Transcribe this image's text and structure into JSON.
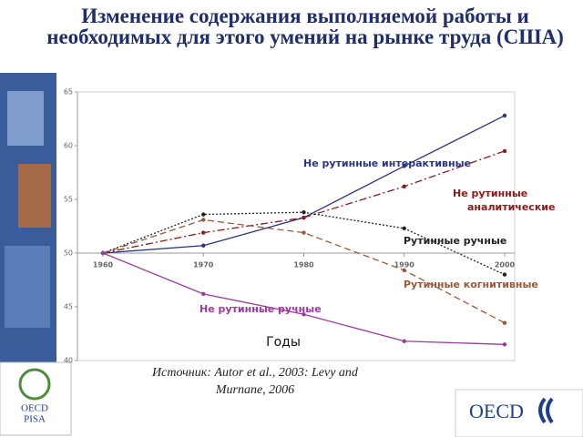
{
  "chart_data": {
    "type": "line",
    "title": "Изменение содержания выполняемой работы и необходимых для этого умений на рынке труда (США)",
    "x_label": "Годы",
    "source": "Источник: Autor et al., 2003: Levy and Murnane, 2006",
    "x": [
      1960,
      1970,
      1980,
      1990,
      2000
    ],
    "xlim": [
      1960,
      2001
    ],
    "xticks": [
      1960,
      1970,
      1980,
      1990,
      2000
    ],
    "ylim": [
      40,
      65
    ],
    "yticks": [
      40,
      45,
      50,
      55,
      60,
      65
    ],
    "series": [
      {
        "name": "Не рутинные интерактивные",
        "color": "#2a3585",
        "values": [
          50,
          50.7,
          53.3,
          58.1,
          62.8
        ]
      },
      {
        "name": "Не рутинные аналитические",
        "color": "#8b1a1a",
        "values": [
          50,
          51.9,
          53.3,
          56.2,
          59.5
        ]
      },
      {
        "name": "Рутинные ручные",
        "color": "#222222",
        "values": [
          50,
          53.6,
          53.8,
          52.3,
          48
        ]
      },
      {
        "name": "Рутинные когнитивные",
        "color": "#9a5a3a",
        "values": [
          50,
          53.1,
          51.9,
          48.4,
          43.5
        ]
      },
      {
        "name": "Не рутинные ручные",
        "color": "#9b3a9b",
        "values": [
          50,
          46.2,
          44.3,
          41.8,
          41.5
        ]
      }
    ]
  },
  "logos": {
    "pisa_top": "OECD",
    "pisa_bottom": "PISA",
    "oecd": "OECD"
  }
}
